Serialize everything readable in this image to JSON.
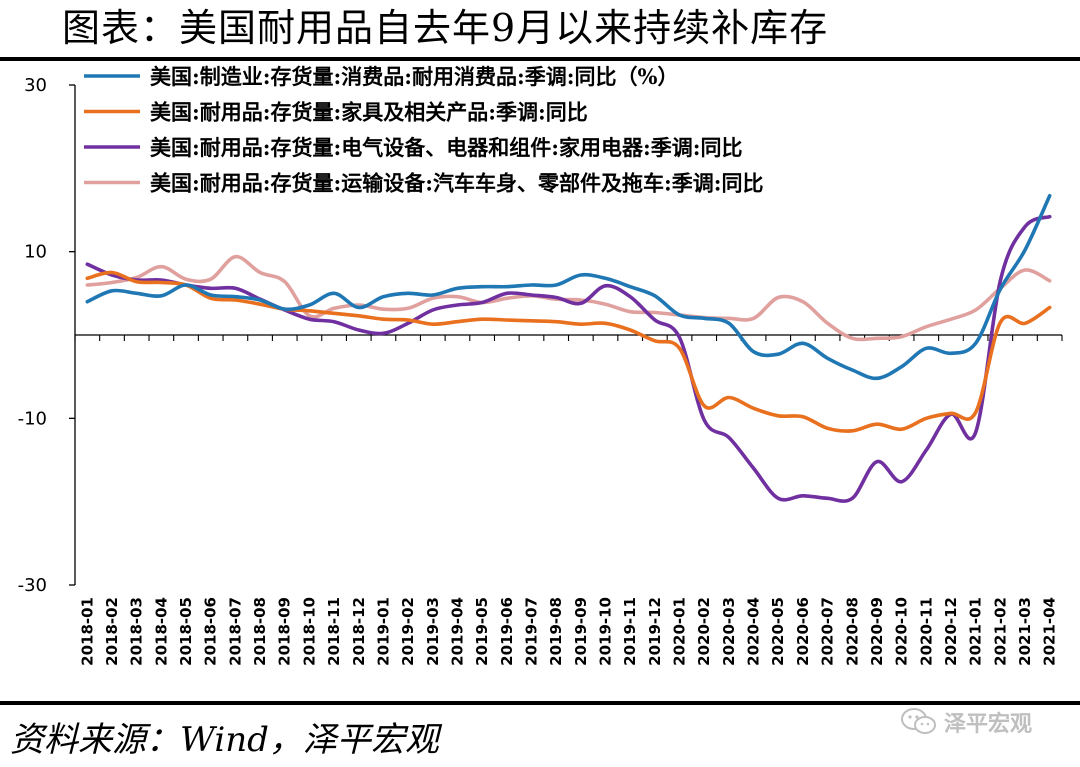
{
  "title": "图表：美国耐用品自去年9月以来持续补库存",
  "source": "资料来源：Wind，泽平宏观",
  "watermark": "泽平宏观",
  "chart_data": {
    "type": "line",
    "ylim": [
      -30,
      30
    ],
    "yticks": [
      "30",
      "10",
      "-10",
      "-30"
    ],
    "ytick_values": [
      30,
      10,
      -10,
      -30
    ],
    "grid": false,
    "legend_placement": "top",
    "x": [
      "2018-01",
      "2018-02",
      "2018-03",
      "2018-04",
      "2018-05",
      "2018-06",
      "2018-07",
      "2018-08",
      "2018-09",
      "2018-10",
      "2018-11",
      "2018-12",
      "2019-01",
      "2019-02",
      "2019-03",
      "2019-04",
      "2019-05",
      "2019-06",
      "2019-07",
      "2019-08",
      "2019-09",
      "2019-10",
      "2019-11",
      "2019-12",
      "2020-01",
      "2020-02",
      "2020-03",
      "2020-04",
      "2020-05",
      "2020-06",
      "2020-07",
      "2020-08",
      "2020-09",
      "2020-10",
      "2020-11",
      "2020-12",
      "2021-01",
      "2021-02",
      "2021-03",
      "2021-04"
    ],
    "series": [
      {
        "name": "美国:制造业:存货量:消费品:耐用消费品:季调:同比（%）",
        "color": "#1f77b4",
        "values": [
          4,
          5.3,
          5,
          4.7,
          6,
          4.8,
          4.6,
          4.2,
          3.1,
          3.6,
          5,
          3.3,
          4.6,
          5,
          4.8,
          5.6,
          5.8,
          5.8,
          6,
          6,
          7.2,
          6.8,
          5.8,
          4.7,
          2.4,
          2,
          1.4,
          -2,
          -2.3,
          -1,
          -2.8,
          -4.2,
          -5.2,
          -3.8,
          -1.6,
          -2.2,
          -1,
          5.5,
          10.2,
          16.7
        ]
      },
      {
        "name": "美国:耐用品:存货量:家具及相关产品:季调:同比",
        "color": "#e8701e",
        "values": [
          6.8,
          7.5,
          6.4,
          6.3,
          6,
          4.4,
          4.2,
          3.7,
          3.1,
          2.9,
          2.6,
          2.3,
          1.9,
          1.8,
          1.3,
          1.6,
          1.9,
          1.8,
          1.7,
          1.6,
          1.3,
          1.4,
          0.6,
          -0.7,
          -1.6,
          -8.5,
          -7.5,
          -8.8,
          -9.7,
          -9.8,
          -11.2,
          -11.5,
          -10.7,
          -11.3,
          -10,
          -9.4,
          -9.3,
          1.5,
          1.4,
          3.3
        ]
      },
      {
        "name": "美国:耐用品:存货量:电气设备、电器和组件:家用电器:季调:同比",
        "color": "#7030a0",
        "values": [
          8.5,
          7.2,
          6.6,
          6.6,
          6,
          5.6,
          5.6,
          4.3,
          3,
          1.9,
          1.6,
          0.6,
          0.2,
          1.4,
          3,
          3.6,
          3.9,
          5,
          4.8,
          4.5,
          3.8,
          5.9,
          4.6,
          1.8,
          -0.3,
          -10.2,
          -12.3,
          -16,
          -19.6,
          -19.3,
          -19.6,
          -19.6,
          -15.2,
          -17.6,
          -13.8,
          -9.5,
          -11.7,
          6.5,
          13,
          14.2
        ]
      },
      {
        "name": "美国:耐用品:存货量:运输设备:汽车车身、零部件及拖车:季调:同比",
        "color": "#e0a09e",
        "values": [
          6,
          6.3,
          6.9,
          8.2,
          6.7,
          6.7,
          9.4,
          7.5,
          6.4,
          2.3,
          3.2,
          3.6,
          3.1,
          3.2,
          4.4,
          4.6,
          3.9,
          4.4,
          4.7,
          4.3,
          4.2,
          3.7,
          2.8,
          2.7,
          2.4,
          2.1,
          2,
          2,
          4.5,
          4,
          1.4,
          -0.4,
          -0.4,
          -0.2,
          1,
          1.9,
          3,
          5.6,
          7.8,
          6.5
        ]
      }
    ]
  }
}
